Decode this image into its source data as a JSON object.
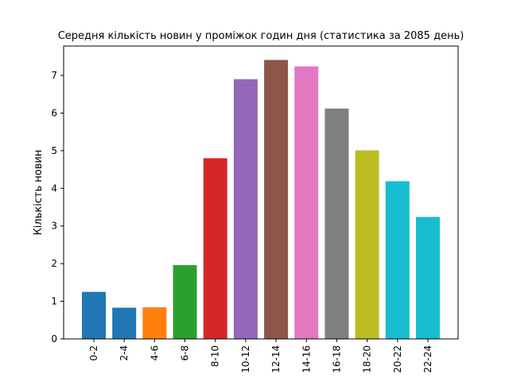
{
  "chart_data": {
    "type": "bar",
    "title": "Середня кількість новин у проміжок годин дня (статистика за 2085 день)",
    "xlabel": "",
    "ylabel": "Кількість новин",
    "categories": [
      "0-2",
      "2-4",
      "4-6",
      "6-8",
      "8-10",
      "10-12",
      "12-14",
      "14-16",
      "16-18",
      "18-20",
      "20-22",
      "22-24"
    ],
    "values": [
      1.25,
      0.83,
      0.84,
      1.96,
      4.8,
      6.9,
      7.41,
      7.24,
      6.12,
      5.01,
      4.19,
      3.24
    ],
    "colors": [
      "#1f77b4",
      "#1f77b4",
      "#ff7f0e",
      "#2ca02c",
      "#d62728",
      "#9467bd",
      "#8c564b",
      "#e377c2",
      "#7f7f7f",
      "#bcbd22",
      "#17becf",
      "#17becf"
    ],
    "ylim": [
      0,
      7.78
    ],
    "yticks": [
      0,
      1,
      2,
      3,
      4,
      5,
      6,
      7
    ],
    "grid": false,
    "legend": "none"
  }
}
